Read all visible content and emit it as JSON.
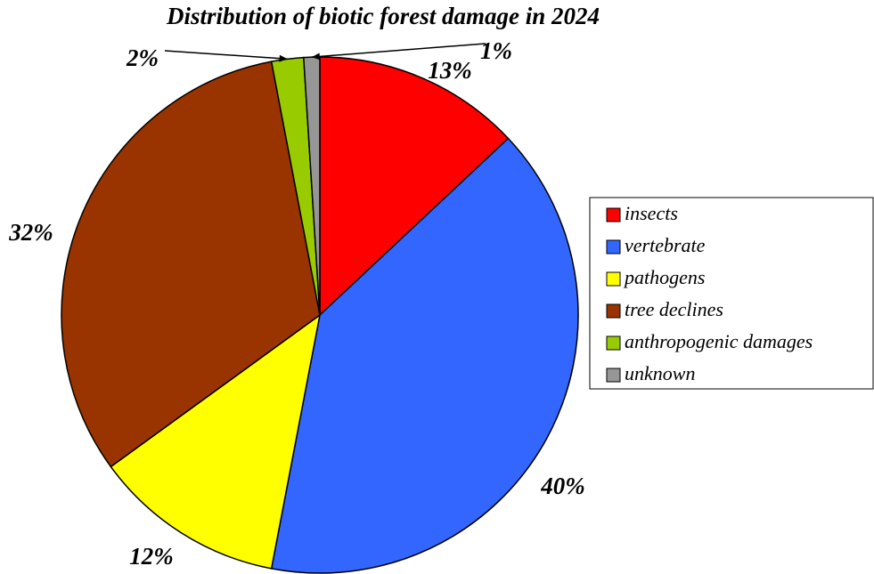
{
  "chart_data": {
    "type": "pie",
    "title": "Distribution of biotic forest damage in 2024",
    "slices": [
      {
        "label": "insects",
        "value": 13,
        "display": "13%",
        "color": "#ff0000"
      },
      {
        "label": "vertebrate",
        "value": 40,
        "display": "40%",
        "color": "#3366ff"
      },
      {
        "label": "pathogens",
        "value": 12,
        "display": "12%",
        "color": "#ffff00"
      },
      {
        "label": "tree declines",
        "value": 32,
        "display": "32%",
        "color": "#993300"
      },
      {
        "label": "anthropogenic damages",
        "value": 2,
        "display": "2%",
        "color": "#99cc00"
      },
      {
        "label": "unknown",
        "value": 1,
        "display": "1%",
        "color": "#969696"
      }
    ],
    "legend_position": "right"
  }
}
